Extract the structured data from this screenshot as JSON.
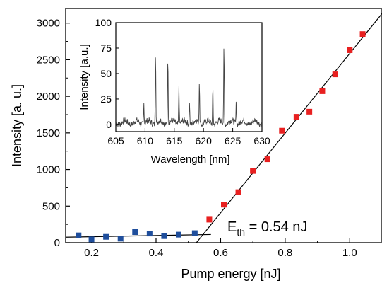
{
  "chart_data": [
    {
      "type": "scatter",
      "xlabel": "Pump energy [nJ]",
      "ylabel": "Intensity [a. u.]",
      "xlim": [
        0.12,
        1.1
      ],
      "ylim": [
        0,
        3200
      ],
      "x_ticks": [
        "0.2",
        "0.4",
        "0.6",
        "0.8",
        "1.0"
      ],
      "y_ticks": [
        "0",
        "500",
        "1000",
        "1500",
        "2000",
        "2500",
        "3000"
      ],
      "series": [
        {
          "color": "#1f4e9c",
          "marker": "square",
          "points": [
            [
              0.16,
              100
            ],
            [
              0.2,
              45
            ],
            [
              0.245,
              80
            ],
            [
              0.29,
              55
            ],
            [
              0.335,
              145
            ],
            [
              0.38,
              125
            ],
            [
              0.425,
              90
            ],
            [
              0.47,
              110
            ],
            [
              0.52,
              130
            ]
          ]
        },
        {
          "color": "#e82020",
          "marker": "square",
          "points": [
            [
              0.565,
              315
            ],
            [
              0.61,
              520
            ],
            [
              0.655,
              690
            ],
            [
              0.7,
              980
            ],
            [
              0.745,
              1140
            ],
            [
              0.79,
              1530
            ],
            [
              0.835,
              1720
            ],
            [
              0.875,
              1790
            ],
            [
              0.915,
              2070
            ],
            [
              0.955,
              2300
            ],
            [
              1.0,
              2630
            ],
            [
              1.04,
              2850
            ]
          ]
        }
      ],
      "fits": [
        {
          "color": "#000000",
          "from": [
            0.12,
            75
          ],
          "to": [
            0.57,
            112
          ]
        },
        {
          "color": "#000000",
          "from": [
            0.525,
            0
          ],
          "to": [
            1.1,
            3130
          ]
        }
      ],
      "annotation": {
        "text": "E",
        "subscript": "th",
        "rest": " = 0.54 nJ"
      }
    },
    {
      "type": "line",
      "xlabel": "Wavelength [nm]",
      "ylabel": "Intensity [a.u.]",
      "xlim": [
        605,
        630
      ],
      "ylim": [
        -7,
        100
      ],
      "x_ticks": [
        "605",
        "610",
        "615",
        "620",
        "625",
        "630"
      ],
      "y_ticks": [
        "0",
        "25",
        "50",
        "75",
        "100"
      ],
      "color": "#444444",
      "baseline": 2,
      "peaks": [
        [
          609.8,
          22
        ],
        [
          611.8,
          76
        ],
        [
          613.9,
          69
        ],
        [
          615.8,
          40
        ],
        [
          617.6,
          25
        ],
        [
          619.3,
          44
        ],
        [
          621.6,
          38
        ],
        [
          623.5,
          80
        ],
        [
          625.6,
          23
        ]
      ]
    }
  ]
}
